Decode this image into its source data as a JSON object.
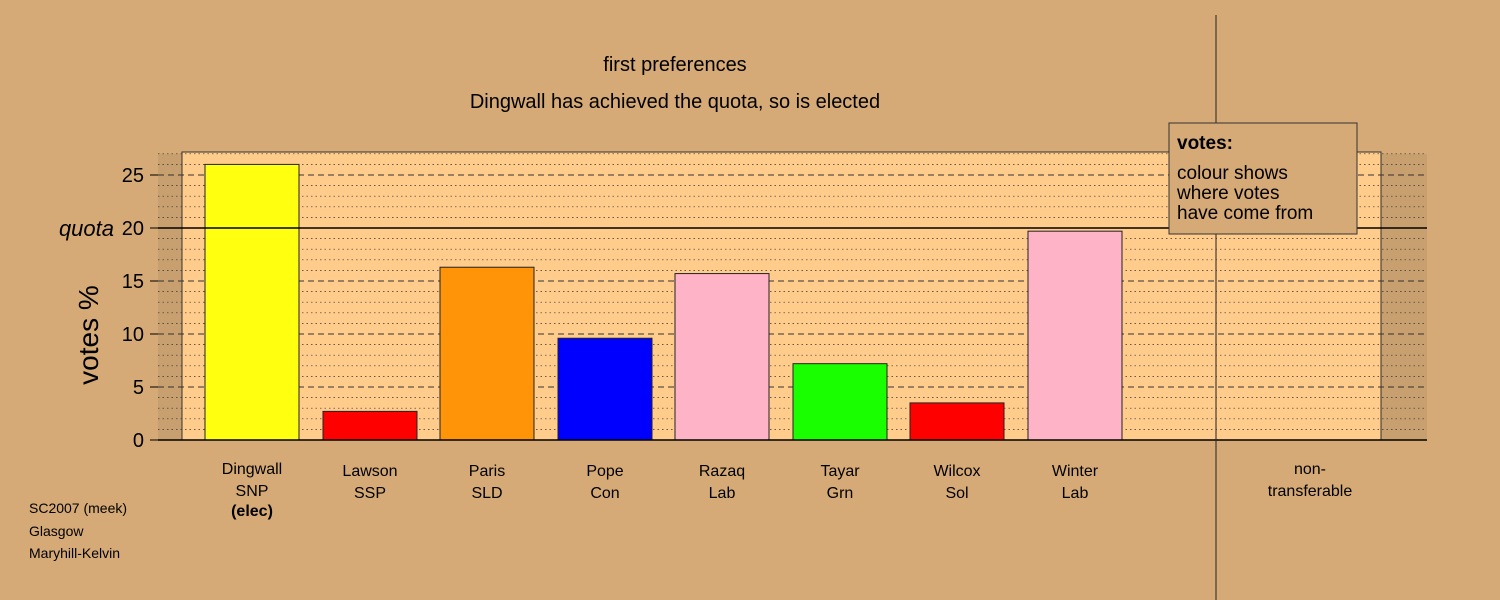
{
  "chart_data": {
    "type": "bar",
    "title": "first preferences",
    "subtitle": "Dingwall has achieved the quota, so is elected",
    "ylabel": "votes %",
    "ylim": [
      0,
      27
    ],
    "yticks": [
      0,
      5,
      10,
      15,
      20,
      25
    ],
    "quota_label": "quota",
    "quota_value": 20,
    "grid": "dashed every 5, dotted every 1",
    "categories": [
      {
        "name": "Dingwall",
        "party": "SNP",
        "status": "(elec)",
        "value": 26.0,
        "color": "#ffff10"
      },
      {
        "name": "Lawson",
        "party": "SSP",
        "status": "",
        "value": 2.7,
        "color": "#ff0000"
      },
      {
        "name": "Paris",
        "party": "SLD",
        "status": "",
        "value": 16.3,
        "color": "#ff9408"
      },
      {
        "name": "Pope",
        "party": "Con",
        "status": "",
        "value": 9.6,
        "color": "#0000ff"
      },
      {
        "name": "Razaq",
        "party": "Lab",
        "status": "",
        "value": 15.7,
        "color": "#ffb3c6"
      },
      {
        "name": "Tayar",
        "party": "Grn",
        "status": "",
        "value": 7.2,
        "color": "#19ff00"
      },
      {
        "name": "Wilcox",
        "party": "Sol",
        "status": "",
        "value": 3.5,
        "color": "#ff0000"
      },
      {
        "name": "Winter",
        "party": "Lab",
        "status": "",
        "value": 19.7,
        "color": "#ffb3c6"
      }
    ],
    "nontransferable": {
      "label_line1": "non-",
      "label_line2": "transferable",
      "value": 0
    },
    "legend": {
      "placement": "top-right",
      "title": "votes:",
      "lines": [
        "colour shows",
        "where votes",
        "have come from"
      ]
    }
  },
  "footnote": {
    "line1": "SC2007 (meek)",
    "line2": "Glasgow",
    "line3": "Maryhill-Kelvin"
  },
  "colors": {
    "background": "#d5aa76",
    "plot_panel": "#ffcc8c",
    "shade_right": "#c89f6e"
  }
}
